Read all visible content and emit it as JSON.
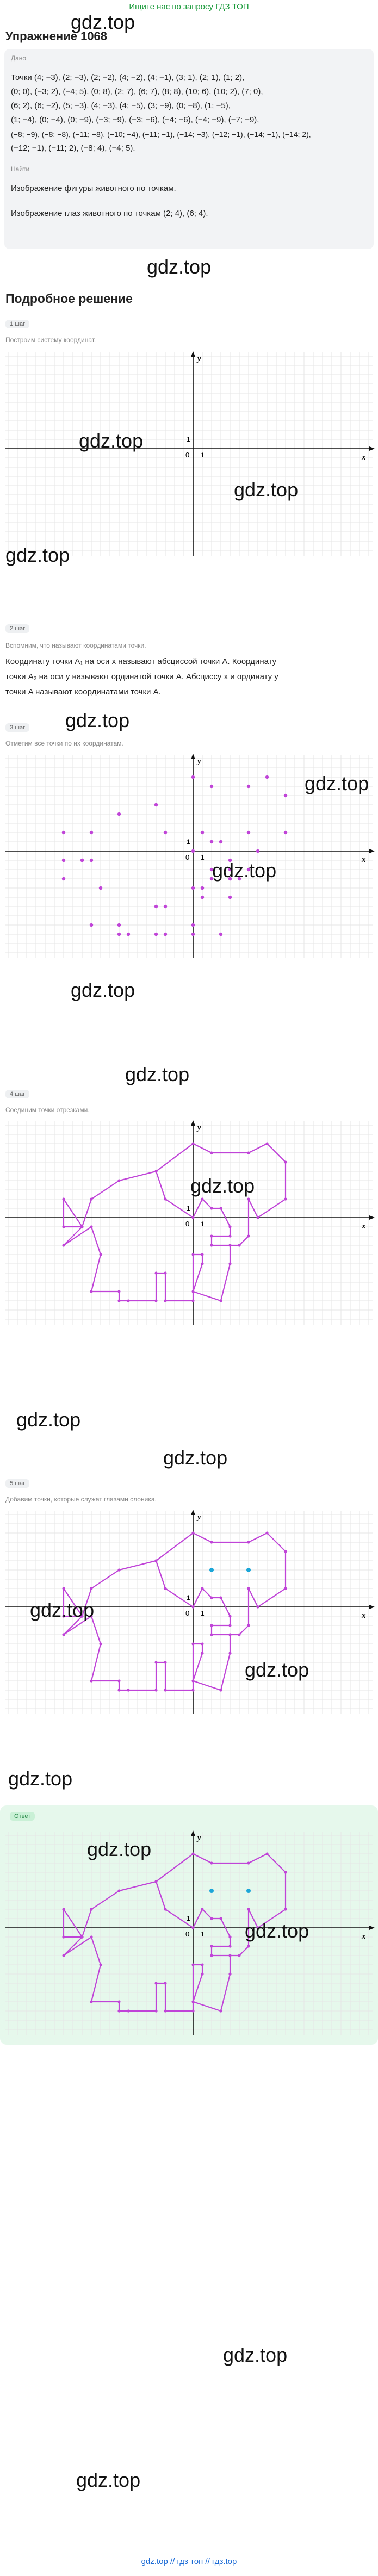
{
  "banner": "Ищите нас по запросу ГДЗ ТОП",
  "watermark": "gdz.top",
  "title": "Упражнение 1068",
  "given": {
    "label": "Дано",
    "points_lines": [
      "Точки (4; −3), (2; −3), (2; −2), (4; −2), (4; −1), (3; 1), (2; 1), (1; 2),",
      "(0; 0), (−3; 2), (−4; 5), (0; 8), (2; 7), (6; 7), (8; 8), (10; 6), (10; 2), (7; 0),",
      "(6; 2), (6; −2), (5; −3), (4; −3), (4; −5), (3; −9), (0; −8), (1; −5),",
      "(1; −4), (0; −4), (0; −9), (−3; −9), (−3; −6), (−4; −6), (−4; −9), (−7; −9),",
      "(−8; −9), (−8; −8), (−11; −8), (−10; −4), (−11; −1), (−14; −3), (−12; −1), (−14; −1), (−14; 2),",
      "(−12; −1), (−11; 2), (−8; 4), (−4; 5)."
    ],
    "find_label": "Найти",
    "find1": "Изображение фигуры животного по точкам.",
    "find2": "Изображение глаз животного по точкам (2; 4), (6; 4)."
  },
  "solution_title": "Подробное решение",
  "steps": [
    {
      "chip": "1 шаг",
      "text": "Построим систему координат."
    },
    {
      "chip": "2 шаг",
      "text": "Вспомним, что называют координатами точки.",
      "p1": "Координату точки A₁ на оси x называют абсциссой точки A. Координату",
      "p2": "точки A₂ на оси y называют ординатой точки A. Абсциссу x и ординату y",
      "p3": "точки A называют координатами точки A."
    },
    {
      "chip": "3 шаг",
      "text": "Отметим все точки по их координатам."
    },
    {
      "chip": "4 шаг",
      "text": "Соединим точки отрезками."
    },
    {
      "chip": "5 шаг",
      "text": "Добавим точки, которые служат глазами слоника."
    }
  ],
  "answer_chip": "Ответ",
  "axis": {
    "x": "x",
    "y": "y",
    "origin": "0",
    "one": "1"
  },
  "footer": "gdz.top  //  гдз топ  //  гдз.top",
  "chart_data": {
    "type": "scatter",
    "points": [
      [
        4,
        -3
      ],
      [
        2,
        -3
      ],
      [
        2,
        -2
      ],
      [
        4,
        -2
      ],
      [
        4,
        -1
      ],
      [
        3,
        1
      ],
      [
        2,
        1
      ],
      [
        1,
        2
      ],
      [
        0,
        0
      ],
      [
        -3,
        2
      ],
      [
        -4,
        5
      ],
      [
        0,
        8
      ],
      [
        2,
        7
      ],
      [
        6,
        7
      ],
      [
        8,
        8
      ],
      [
        10,
        6
      ],
      [
        10,
        2
      ],
      [
        7,
        0
      ],
      [
        6,
        2
      ],
      [
        6,
        -2
      ],
      [
        5,
        -3
      ],
      [
        4,
        -3
      ],
      [
        4,
        -5
      ],
      [
        3,
        -9
      ],
      [
        0,
        -8
      ],
      [
        1,
        -5
      ],
      [
        1,
        -4
      ],
      [
        0,
        -4
      ],
      [
        0,
        -9
      ],
      [
        -3,
        -9
      ],
      [
        -3,
        -6
      ],
      [
        -4,
        -6
      ],
      [
        -4,
        -9
      ],
      [
        -7,
        -9
      ],
      [
        -8,
        -9
      ],
      [
        -8,
        -8
      ],
      [
        -11,
        -8
      ],
      [
        -10,
        -4
      ],
      [
        -11,
        -1
      ],
      [
        -14,
        -3
      ],
      [
        -12,
        -1
      ],
      [
        -14,
        -1
      ],
      [
        -14,
        2
      ],
      [
        -12,
        -1
      ],
      [
        -11,
        2
      ],
      [
        -8,
        4
      ],
      [
        -4,
        5
      ]
    ],
    "eyes": [
      [
        2,
        4
      ],
      [
        6,
        4
      ]
    ],
    "colors": {
      "line": "#c044d8",
      "eye": "#1ca6d8",
      "grid": "#e6e6e6"
    }
  }
}
